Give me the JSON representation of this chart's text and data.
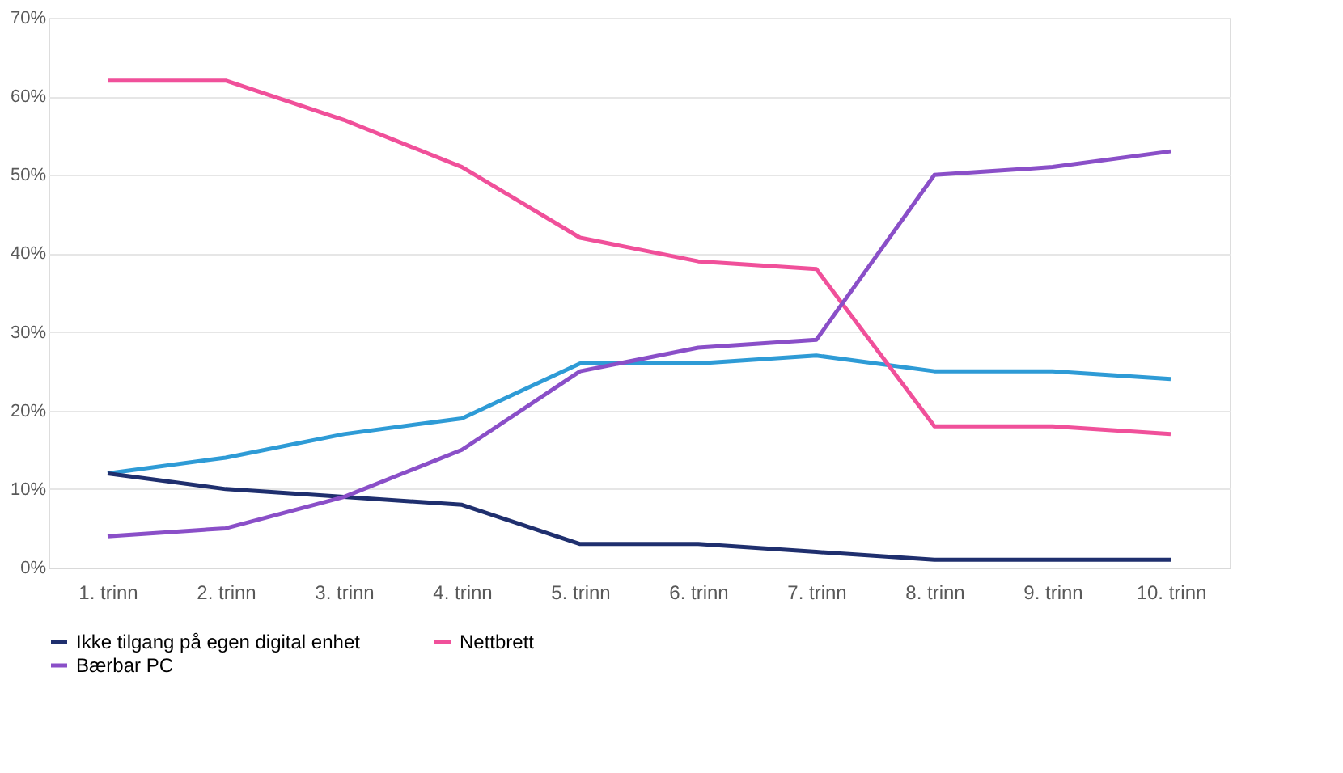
{
  "chart_data": {
    "type": "line",
    "categories": [
      "1. trinn",
      "2. trinn",
      "3. trinn",
      "4. trinn",
      "5. trinn",
      "6. trinn",
      "7. trinn",
      "8. trinn",
      "9. trinn",
      "10. trinn"
    ],
    "series": [
      {
        "color": "#2e9bd6",
        "values": [
          12,
          14,
          17,
          19,
          26,
          26,
          27,
          25,
          25,
          24
        ]
      },
      {
        "name": "Ikke tilgang på egen digital enhet",
        "color": "#1f2f6e",
        "values": [
          12,
          10,
          9,
          8,
          3,
          3,
          2,
          1,
          1,
          1
        ]
      },
      {
        "name": "Nettbrett",
        "color": "#f0509a",
        "values": [
          62,
          62,
          57,
          51,
          42,
          39,
          38,
          18,
          18,
          17
        ]
      },
      {
        "name": "Bærbar PC",
        "color": "#8a4fc8",
        "values": [
          4,
          5,
          9,
          15,
          25,
          28,
          29,
          50,
          51,
          53
        ]
      }
    ],
    "ylim": [
      0,
      70
    ],
    "yticks": [
      {
        "value": 0,
        "label": "0%"
      },
      {
        "value": 10,
        "label": "10%"
      },
      {
        "value": 20,
        "label": "20%"
      },
      {
        "value": 30,
        "label": "30%"
      },
      {
        "value": 40,
        "label": "40%"
      },
      {
        "value": 50,
        "label": "50%"
      },
      {
        "value": 60,
        "label": "60%"
      },
      {
        "value": 70,
        "label": "70%"
      }
    ],
    "grid": "y",
    "legend": "bottom",
    "marker": "none",
    "line_style": "solid"
  }
}
